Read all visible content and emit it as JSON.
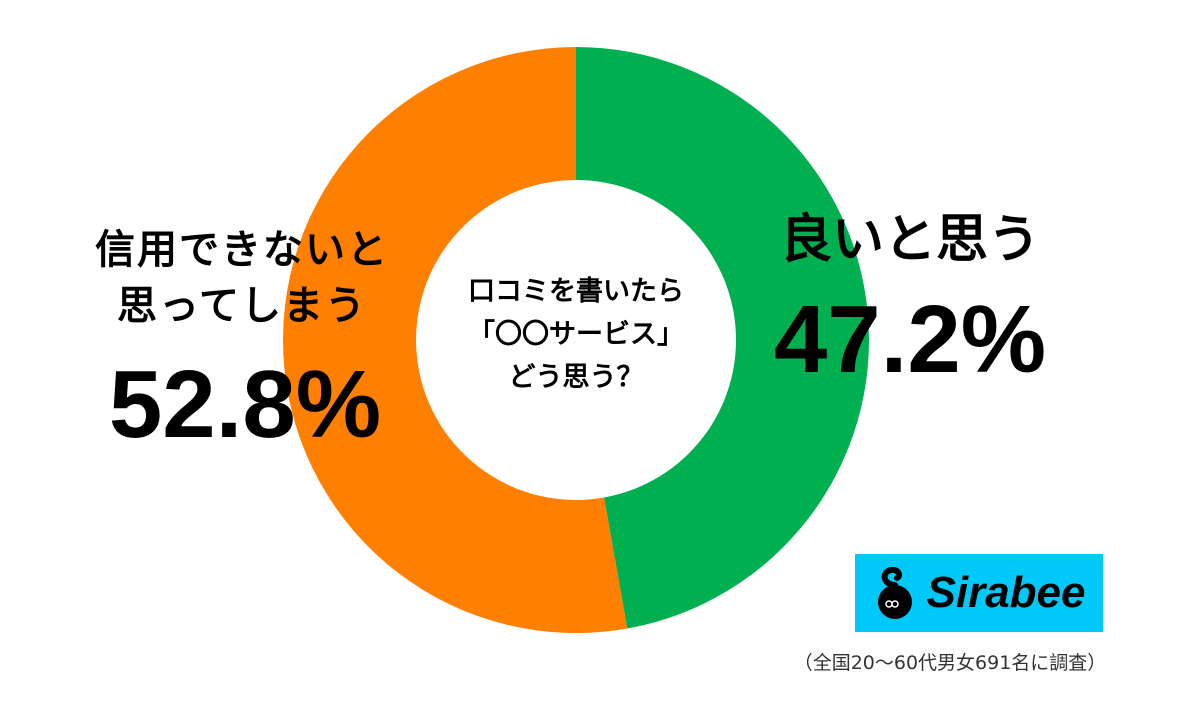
{
  "chart_data": {
    "type": "pie",
    "subtype": "donut",
    "title": "口コミを書いたら「〇〇サービス」どう思う？",
    "categories": [
      "良いと思う",
      "信用できないと思ってしまう"
    ],
    "values": [
      47.2,
      52.8
    ],
    "unit": "%",
    "colors": [
      "#00b050",
      "#ff7f00"
    ],
    "start_angle": "12 o'clock",
    "direction": "clockwise (green first)",
    "data_labels": [
      "47.2%",
      "52.8%"
    ],
    "legend": "none (direct labels)",
    "note": "（全国20〜60代男女691名に調査）"
  },
  "center": {
    "lines": [
      "口コミを書いたら",
      "「〇〇サービス」",
      "どう思う？"
    ]
  },
  "left_label": {
    "lines": [
      "信用できないと",
      "思ってしまう"
    ],
    "value": "52.8%",
    "color": "#ff7f00"
  },
  "right_label": {
    "text": "良いと思う",
    "value": "47.2%",
    "color": "#00b050"
  },
  "logo": {
    "text": "Sirabee",
    "bg": "#00c8f8"
  },
  "footnote": "（全国20〜60代男女691名に調査）"
}
